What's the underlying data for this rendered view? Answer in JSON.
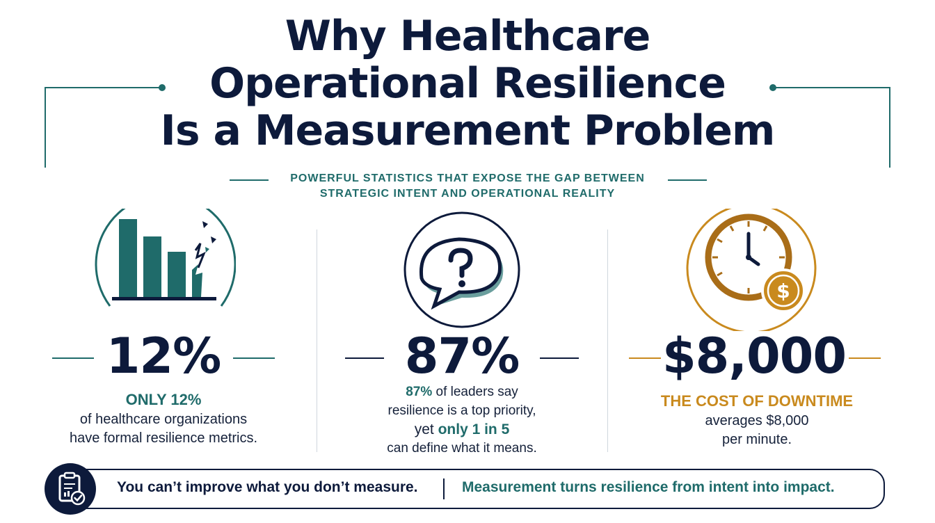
{
  "title": {
    "line1": "Why Healthcare",
    "line2": "Operational Resilience",
    "line3": "Is a Measurement Problem"
  },
  "subtitle": {
    "line1": "POWERFUL STATISTICS THAT EXPOSE THE GAP BETWEEN",
    "line2": "STRATEGIC INTENT AND OPERATIONAL REALITY"
  },
  "colors": {
    "navy": "#0d1a3b",
    "teal": "#1f6b6a",
    "gold": "#c98a1e"
  },
  "stats": [
    {
      "icon": "declining-bar-chart-icon",
      "value": "12%",
      "kicker": "ONLY 12%",
      "desc_line1": "of healthcare organizations",
      "desc_line2": "have formal resilience metrics."
    },
    {
      "icon": "question-speech-bubble-icon",
      "value": "87%",
      "desc_hl1": "87%",
      "desc_line1": " of leaders say",
      "desc_line2": "resilience is a top priority,",
      "desc_line3_pre": "yet ",
      "desc_hl2": "only 1 in 5",
      "desc_line4": "can define  what it means."
    },
    {
      "icon": "clock-with-dollar-icon",
      "value": "$8,000",
      "kicker": "THE COST OF DOWNTIME",
      "desc_line1": "averages $8,000",
      "desc_line2": "per minute."
    }
  ],
  "banner": {
    "icon": "clipboard-check-icon",
    "left": "You can’t improve what you don’t measure.",
    "right": "Measurement turns resilience from intent into impact."
  }
}
